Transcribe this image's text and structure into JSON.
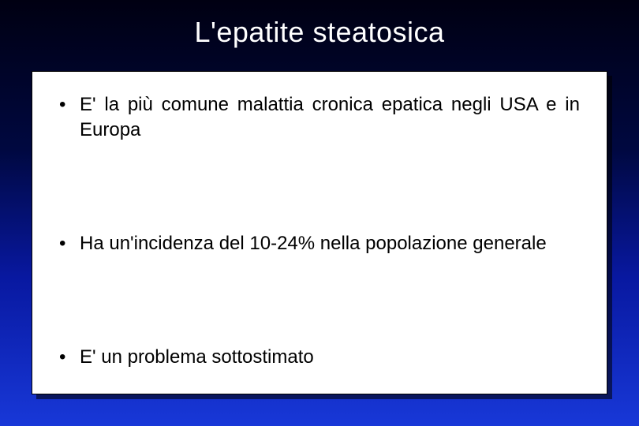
{
  "slide": {
    "title": "L'epatite steatosica",
    "background_gradient": [
      "#000012",
      "#000840",
      "#0818a0",
      "#1838d8"
    ],
    "title_color": "#ffffff",
    "title_fontsize": 36,
    "content_box": {
      "background_color": "#ffffff",
      "border_color": "#000000",
      "shadow_color": "rgba(0,0,0,0.55)",
      "text_color": "#000000",
      "fontsize": 24
    },
    "bullets": [
      "E' la più comune malattia cronica epatica negli USA e in Europa",
      "Ha un'incidenza del 10-24% nella popolazione generale",
      "E' un problema sottostimato"
    ]
  }
}
